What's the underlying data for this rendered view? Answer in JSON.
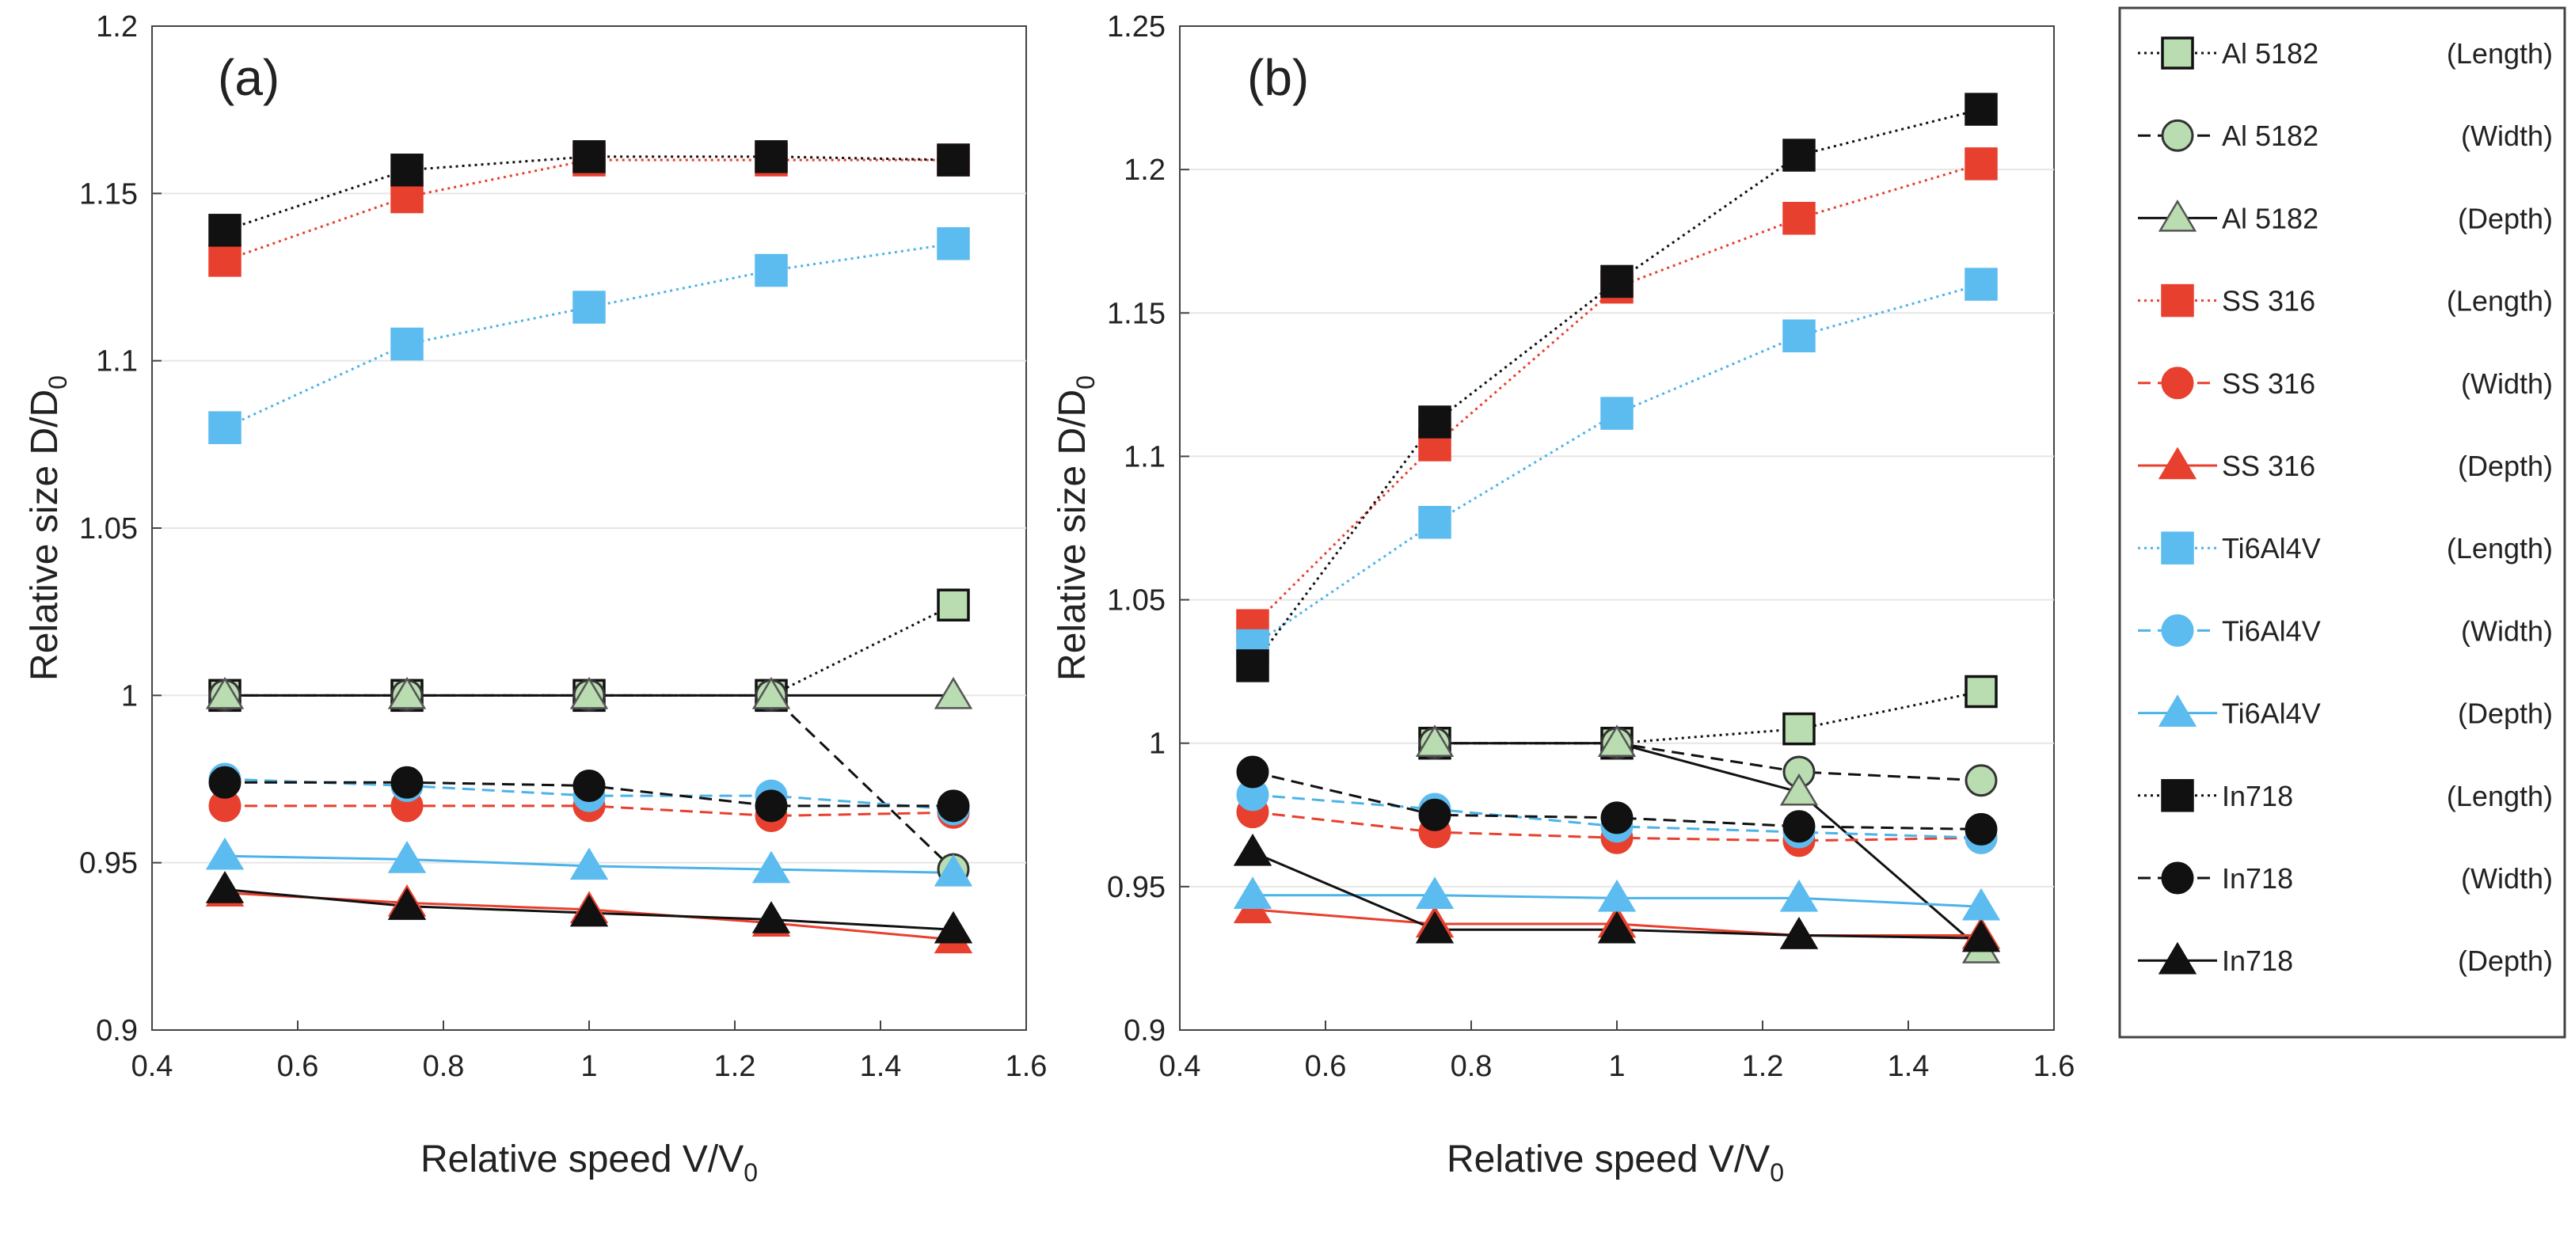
{
  "chart_data": [
    {
      "type": "line",
      "panel_label": "(a)",
      "xlabel_main": "Relative speed  V/V",
      "xlabel_sub": "0",
      "ylabel_main": "Relative size D/D",
      "ylabel_sub": "0",
      "xlim": [
        0.4,
        1.6
      ],
      "ylim": [
        0.9,
        1.2
      ],
      "xticks": [
        0.4,
        0.6,
        0.8,
        1,
        1.2,
        1.4,
        1.6
      ],
      "xtick_labels": [
        "0.4",
        "0.6",
        "0.8",
        "1",
        "1.2",
        "1.4",
        "1.6"
      ],
      "yticks": [
        0.9,
        0.95,
        1,
        1.05,
        1.1,
        1.15,
        1.2
      ],
      "ytick_labels": [
        "0.9",
        "0.95",
        "1",
        "1.05",
        "1.1",
        "1.15",
        "1.2"
      ],
      "grid": "horizontal",
      "x": [
        0.5,
        0.75,
        1.0,
        1.25,
        1.5
      ],
      "series": [
        {
          "name": "Al 5182  (Length)",
          "values": [
            1.0,
            1.0,
            1.0,
            1.0,
            1.027
          ]
        },
        {
          "name": "Al 5182  (Width)",
          "values": [
            1.0,
            1.0,
            1.0,
            1.0,
            0.948
          ]
        },
        {
          "name": "Al 5182  (Depth)",
          "values": [
            1.0,
            1.0,
            1.0,
            1.0,
            1.0
          ]
        },
        {
          "name": "SS 316  (Length)",
          "values": [
            1.13,
            1.149,
            1.16,
            1.16,
            1.16
          ]
        },
        {
          "name": "SS 316  (Width)",
          "values": [
            0.967,
            0.967,
            0.967,
            0.964,
            0.965
          ]
        },
        {
          "name": "SS 316  (Depth)",
          "values": [
            0.941,
            0.938,
            0.936,
            0.932,
            0.927
          ]
        },
        {
          "name": "Ti6Al4V  (Length)",
          "values": [
            1.08,
            1.105,
            1.116,
            1.127,
            1.135
          ]
        },
        {
          "name": "Ti6Al4V  (Width)",
          "values": [
            0.975,
            0.973,
            0.97,
            0.97,
            0.966
          ]
        },
        {
          "name": "Ti6Al4V  (Depth)",
          "values": [
            0.952,
            0.951,
            0.949,
            0.948,
            0.947
          ]
        },
        {
          "name": "In718  (Length)",
          "values": [
            1.139,
            1.157,
            1.161,
            1.161,
            1.16
          ]
        },
        {
          "name": "In718  (Width)",
          "values": [
            0.974,
            0.974,
            0.973,
            0.967,
            0.967
          ]
        },
        {
          "name": "In718  (Depth)",
          "values": [
            0.942,
            0.937,
            0.935,
            0.933,
            0.93
          ]
        }
      ]
    },
    {
      "type": "line",
      "panel_label": "(b)",
      "xlabel_main": "Relative speed V/V",
      "xlabel_sub": "0",
      "ylabel_main": "Relative size D/D",
      "ylabel_sub": "0",
      "xlim": [
        0.4,
        1.6
      ],
      "ylim": [
        0.9,
        1.25
      ],
      "xticks": [
        0.4,
        0.6,
        0.8,
        1,
        1.2,
        1.4,
        1.6
      ],
      "xtick_labels": [
        "0.4",
        "0.6",
        "0.8",
        "1",
        "1.2",
        "1.4",
        "1.6"
      ],
      "yticks": [
        0.9,
        0.95,
        1,
        1.05,
        1.1,
        1.15,
        1.2,
        1.25
      ],
      "ytick_labels": [
        "0.9",
        "0.95",
        "1",
        "1.05",
        "1.1",
        "1.15",
        "1.2",
        "1.25"
      ],
      "grid": "horizontal",
      "x": [
        0.5,
        0.75,
        1.0,
        1.25,
        1.5
      ],
      "series": [
        {
          "name": "Al 5182  (Length)",
          "values": [
            null,
            1.0,
            1.0,
            1.005,
            1.018
          ]
        },
        {
          "name": "Al 5182  (Width)",
          "values": [
            null,
            1.0,
            1.0,
            0.99,
            0.987
          ]
        },
        {
          "name": "Al 5182  (Depth)",
          "values": [
            null,
            1.0,
            1.0,
            0.983,
            0.928
          ]
        },
        {
          "name": "SS 316  (Length)",
          "values": [
            1.041,
            1.104,
            1.159,
            1.183,
            1.202
          ]
        },
        {
          "name": "SS 316  (Width)",
          "values": [
            0.976,
            0.969,
            0.967,
            0.966,
            0.967
          ]
        },
        {
          "name": "SS 316  (Depth)",
          "values": [
            0.942,
            0.937,
            0.937,
            0.933,
            0.933
          ]
        },
        {
          "name": "Ti6Al4V  (Length)",
          "values": [
            1.034,
            1.077,
            1.115,
            1.142,
            1.16
          ]
        },
        {
          "name": "Ti6Al4V  (Width)",
          "values": [
            0.982,
            0.977,
            0.971,
            0.969,
            0.967
          ]
        },
        {
          "name": "Ti6Al4V  (Depth)",
          "values": [
            0.947,
            0.947,
            0.946,
            0.946,
            0.943
          ]
        },
        {
          "name": "In718  (Length)",
          "values": [
            1.027,
            1.112,
            1.161,
            1.205,
            1.221
          ]
        },
        {
          "name": "In718  (Width)",
          "values": [
            0.99,
            0.975,
            0.974,
            0.971,
            0.97
          ]
        },
        {
          "name": "In718  (Depth)",
          "values": [
            0.962,
            0.935,
            0.935,
            0.933,
            0.932
          ]
        }
      ]
    }
  ],
  "legend": {
    "placement": "right",
    "entries": [
      {
        "material": "Al 5182",
        "dim": "(Length)",
        "marker": "square",
        "dash": "dotted",
        "line": "#111111",
        "fill": "#b9dcb1",
        "stroke": "#111111"
      },
      {
        "material": "Al 5182",
        "dim": "(Width)",
        "marker": "circle",
        "dash": "dashed",
        "line": "#111111",
        "fill": "#b9dcb1",
        "stroke": "#333333"
      },
      {
        "material": "Al 5182",
        "dim": "(Depth)",
        "marker": "triangle",
        "dash": "solid",
        "line": "#111111",
        "fill": "#b9dcb1",
        "stroke": "#555555"
      },
      {
        "material": "SS 316",
        "dim": "(Length)",
        "marker": "square",
        "dash": "dotted",
        "line": "#e8402e",
        "fill": "#e8402e",
        "stroke": "#e8402e"
      },
      {
        "material": "SS 316",
        "dim": "(Width)",
        "marker": "circle",
        "dash": "dashed",
        "line": "#e8402e",
        "fill": "#e8402e",
        "stroke": "#e8402e"
      },
      {
        "material": "SS 316",
        "dim": "(Depth)",
        "marker": "triangle",
        "dash": "solid",
        "line": "#e8402e",
        "fill": "#e8402e",
        "stroke": "#e8402e"
      },
      {
        "material": "Ti6Al4V",
        "dim": "(Length)",
        "marker": "square",
        "dash": "dotted",
        "line": "#4cb3e8",
        "fill": "#5cbcef",
        "stroke": "#5cbcef"
      },
      {
        "material": "Ti6Al4V",
        "dim": "(Width)",
        "marker": "circle",
        "dash": "dashed",
        "line": "#4cb3e8",
        "fill": "#5cbcef",
        "stroke": "#5cbcef"
      },
      {
        "material": "Ti6Al4V",
        "dim": "(Depth)",
        "marker": "triangle",
        "dash": "solid",
        "line": "#4cb3e8",
        "fill": "#5cbcef",
        "stroke": "#5cbcef"
      },
      {
        "material": "In718",
        "dim": "(Length)",
        "marker": "square",
        "dash": "dotted",
        "line": "#111111",
        "fill": "#111111",
        "stroke": "#111111"
      },
      {
        "material": "In718",
        "dim": "(Width)",
        "marker": "circle",
        "dash": "dashed",
        "line": "#111111",
        "fill": "#111111",
        "stroke": "#111111"
      },
      {
        "material": "In718",
        "dim": "(Depth)",
        "marker": "triangle",
        "dash": "solid",
        "line": "#111111",
        "fill": "#111111",
        "stroke": "#111111"
      }
    ]
  }
}
